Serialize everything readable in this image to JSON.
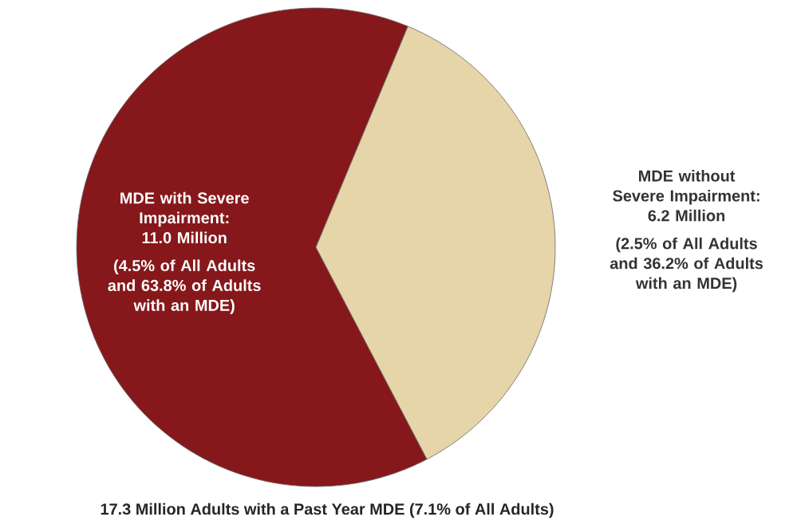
{
  "chart_data": {
    "type": "pie",
    "categories": [
      "MDE with Severe Impairment: 11.0 Million",
      "MDE without Severe Impairment: 6.2 Million"
    ],
    "values": [
      11.0,
      6.2
    ],
    "colors": [
      "#86181b",
      "#e6d5a8"
    ],
    "annotations": [
      "(4.5% of All Adults and 63.8% of Adults with an MDE)",
      "(2.5% of All Adults and 36.2% of Adults with an MDE)",
      "17.3 Million Adults with a Past Year MDE (7.1% of All Adults)"
    ]
  }
}
